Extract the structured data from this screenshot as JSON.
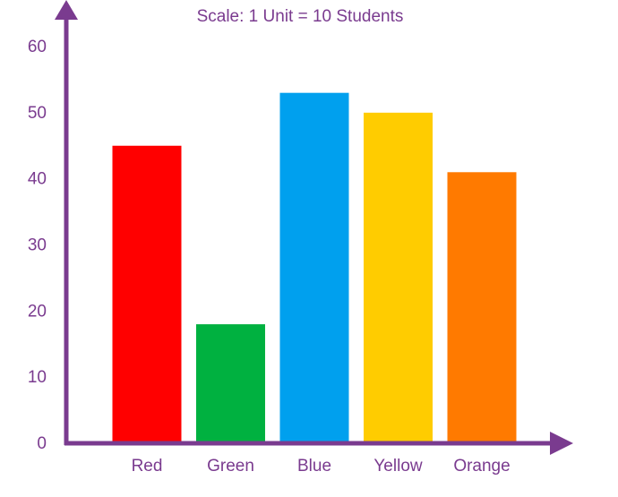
{
  "chart_data": {
    "type": "bar",
    "title": "Scale: 1 Unit = 10 Students",
    "xlabel": "",
    "ylabel": "",
    "categories": [
      "Red",
      "Green",
      "Blue",
      "Yellow",
      "Orange"
    ],
    "values": [
      45,
      18,
      53,
      50,
      41
    ],
    "colors": [
      "#ff0000",
      "#00b140",
      "#00a0ee",
      "#ffcc00",
      "#ff7a00"
    ],
    "ylim": [
      0,
      60
    ],
    "yticks": [
      0,
      10,
      20,
      30,
      40,
      50,
      60
    ],
    "axis_color": "#7a3b8f",
    "grid": false
  }
}
